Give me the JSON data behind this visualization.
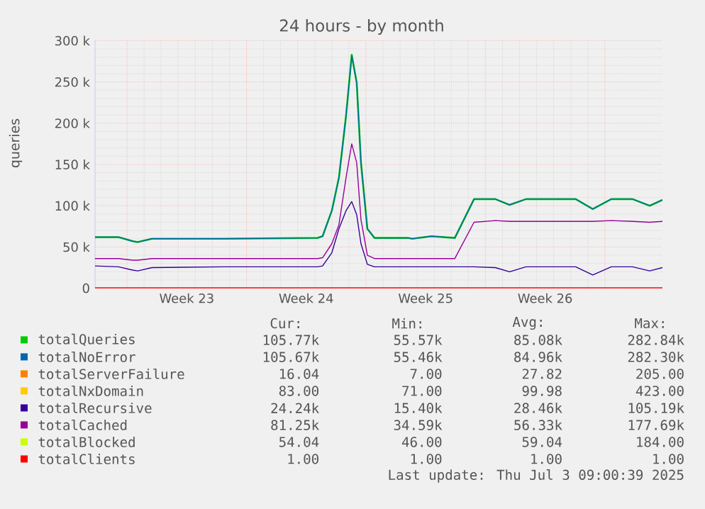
{
  "chart_data": {
    "type": "line",
    "title": "24 hours - by month",
    "ylabel": "queries",
    "x": [
      "2025-05-31T03:00",
      "2025-06-01T12:00",
      "2025-06-02T08:00",
      "2025-06-02T15:00",
      "2025-06-03T11:00",
      "2025-06-07T15:00",
      "2025-06-13T04:00",
      "2025-06-13T11:00",
      "2025-06-14T00:00",
      "2025-06-14T10:00",
      "2025-06-14T20:00",
      "2025-06-15T04:00",
      "2025-06-15T11:00",
      "2025-06-15T17:00",
      "2025-06-16T02:00",
      "2025-06-16T12:00",
      "2025-06-18T11:00",
      "2025-06-18T17:00",
      "2025-06-19T20:00",
      "2025-06-21T05:00",
      "2025-06-22T08:00",
      "2025-06-23T14:00",
      "2025-06-24T10:00",
      "2025-06-25T09:00",
      "2025-06-28T07:00",
      "2025-06-29T07:00",
      "2025-06-30T09:00",
      "2025-07-01T15:00",
      "2025-07-02T15:00",
      "2025-07-03T09:00"
    ],
    "xlim": [
      "2025-05-31T03:00",
      "2025-07-03T09:00"
    ],
    "xticks": [
      {
        "value": "2025-06-02T00:00",
        "label": null
      },
      {
        "value": "2025-06-05T12:00",
        "label": "Week 23"
      },
      {
        "value": "2025-06-09T00:00",
        "label": null
      },
      {
        "value": "2025-06-12T12:00",
        "label": "Week 24"
      },
      {
        "value": "2025-06-16T00:00",
        "label": null
      },
      {
        "value": "2025-06-19T12:00",
        "label": "Week 25"
      },
      {
        "value": "2025-06-23T00:00",
        "label": null
      },
      {
        "value": "2025-06-26T12:00",
        "label": "Week 26"
      },
      {
        "value": "2025-06-30T00:00",
        "label": null
      }
    ],
    "ylim": [
      0,
      300000
    ],
    "yticks": [
      0,
      {
        "value": 50000,
        "label": "50 k"
      },
      {
        "value": 100000,
        "label": "100 k"
      },
      {
        "value": 150000,
        "label": "150 k"
      },
      {
        "value": 200000,
        "label": "200 k"
      },
      {
        "value": 250000,
        "label": "250 k"
      },
      {
        "value": 300000,
        "label": "300 k"
      }
    ],
    "grid": true,
    "legend": "bottom",
    "series": [
      {
        "name": "totalQueries",
        "color": "#00cc00",
        "values": [
          62000,
          62000,
          57000,
          56000,
          60000,
          60000,
          61000,
          63000,
          94000,
          134000,
          209000,
          283000,
          249000,
          152000,
          72000,
          61000,
          61000,
          60000,
          63000,
          61000,
          108000,
          108000,
          101000,
          108000,
          108000,
          96000,
          108000,
          108000,
          100000,
          107000
        ]
      },
      {
        "name": "totalNoError",
        "color": "#0066b3",
        "values": [
          62000,
          62000,
          57000,
          56000,
          60000,
          60000,
          61000,
          63000,
          94000,
          134000,
          209000,
          282000,
          249000,
          152000,
          72000,
          61000,
          61000,
          60000,
          63000,
          61000,
          108000,
          108000,
          101000,
          108000,
          108000,
          96000,
          108000,
          108000,
          100000,
          107000
        ]
      },
      {
        "name": "totalServerFailure",
        "color": "#ff8000",
        "values": [
          null,
          null,
          null,
          null,
          null,
          null,
          null,
          null,
          null,
          null,
          null,
          null,
          null,
          null,
          null,
          null,
          null,
          null,
          null,
          null,
          null,
          null,
          null,
          null,
          null,
          null,
          null,
          null,
          null,
          null
        ]
      },
      {
        "name": "totalNxDomain",
        "color": "#ffcc00",
        "values": [
          null,
          null,
          null,
          null,
          null,
          null,
          null,
          null,
          null,
          null,
          null,
          null,
          null,
          null,
          null,
          null,
          null,
          null,
          null,
          null,
          null,
          null,
          null,
          null,
          null,
          null,
          null,
          null,
          null,
          null
        ]
      },
      {
        "name": "totalRecursive",
        "color": "#330099",
        "values": [
          27000,
          26000,
          22000,
          21000,
          25000,
          26000,
          26000,
          27000,
          43000,
          72000,
          94000,
          105000,
          89000,
          54000,
          29000,
          26000,
          26000,
          26000,
          26000,
          26000,
          26000,
          25000,
          20000,
          26000,
          26000,
          16000,
          26000,
          26000,
          21000,
          25000
        ]
      },
      {
        "name": "totalCached",
        "color": "#990099",
        "values": [
          36000,
          36000,
          34000,
          34000,
          36000,
          36000,
          36000,
          37000,
          54000,
          77000,
          134000,
          175000,
          152000,
          83000,
          40000,
          36000,
          36000,
          36000,
          36000,
          36000,
          80000,
          82000,
          81000,
          81000,
          81000,
          81000,
          82000,
          81000,
          80000,
          81000
        ]
      },
      {
        "name": "totalBlocked",
        "color": "#ccff00",
        "values": [
          null,
          null,
          null,
          null,
          null,
          null,
          null,
          null,
          null,
          null,
          null,
          null,
          null,
          null,
          null,
          null,
          null,
          null,
          null,
          null,
          null,
          null,
          null,
          null,
          null,
          null,
          null,
          null,
          null,
          null
        ]
      },
      {
        "name": "totalClients",
        "color": "#ff0000",
        "values": [
          0,
          0,
          0,
          0,
          0,
          0,
          0,
          0,
          0,
          0,
          0,
          0,
          0,
          0,
          0,
          0,
          0,
          0,
          0,
          0,
          0,
          0,
          0,
          0,
          0,
          0,
          0,
          0,
          0,
          0
        ]
      }
    ],
    "annotations": [
      "Cur:",
      "Min:",
      "Avg:",
      "Max:",
      "105.77k",
      "55.57k",
      "85.08k",
      "282.84k",
      "105.67k",
      "55.46k",
      "84.96k",
      "282.30k",
      "16.04",
      "7.00",
      "27.82",
      "205.00",
      "83.00",
      "71.00",
      "99.98",
      "423.00",
      "24.24k",
      "15.40k",
      "28.46k",
      "105.19k",
      "81.25k",
      "34.59k",
      "56.33k",
      "177.69k",
      "54.04",
      "46.00",
      "59.04",
      "184.00",
      "1.00",
      "1.00",
      "1.00",
      "1.00",
      "Last update: Thu Jul  3 09:00:39 2025"
    ]
  }
}
